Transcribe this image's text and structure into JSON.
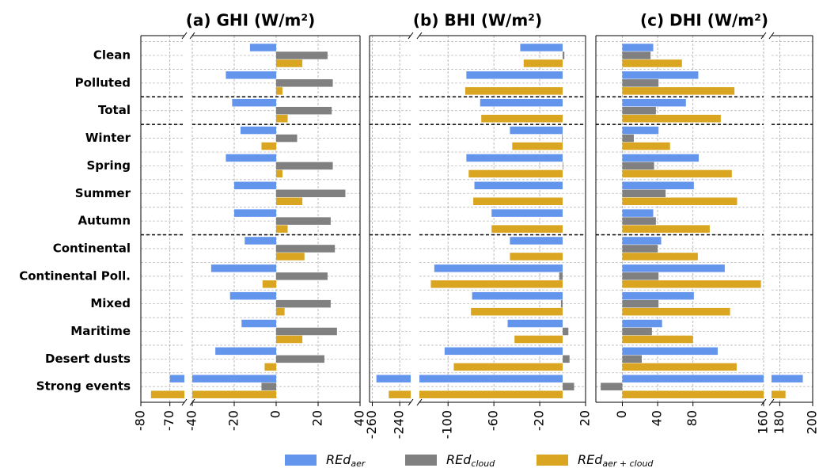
{
  "chart_data": {
    "type": "bar",
    "orientation": "horizontal",
    "grid": true,
    "categories": [
      "Clean",
      "Polluted",
      "Total",
      "Winter",
      "Spring",
      "Summer",
      "Autumn",
      "Continental",
      "Continental Poll.",
      "Mixed",
      "Maritime",
      "Desert dusts",
      "Strong events"
    ],
    "legend": [
      {
        "name": "REd",
        "sub": "aer",
        "color": "#6495ed"
      },
      {
        "name": "REd",
        "sub": "cloud",
        "color": "#808080"
      },
      {
        "name": "REd",
        "sub": "aer + cloud",
        "color": "#daa520"
      }
    ],
    "panels": [
      {
        "title": "(a) GHI (W/m²)",
        "segments": [
          {
            "xlim": [
              -80,
              -65
            ],
            "xticks": [
              -80,
              -70
            ]
          },
          {
            "xlim": [
              -40,
              40
            ],
            "xticks": [
              -40,
              -20,
              0,
              20,
              40
            ]
          }
        ],
        "series": [
          {
            "values": [
              -12.5,
              -24,
              -21,
              -17,
              -24,
              -20,
              -20,
              -15,
              -31,
              -22,
              -16.5,
              -29,
              -70
            ]
          },
          {
            "values": [
              24.5,
              27,
              26.5,
              10,
              27,
              33,
              26,
              28,
              24.5,
              26,
              29,
              23,
              -7
            ]
          },
          {
            "values": [
              12.5,
              3,
              5.5,
              -7,
              3,
              12.5,
              5.5,
              13.5,
              -6.5,
              4,
              12.5,
              -5.5,
              -76.5
            ]
          }
        ]
      },
      {
        "title": "(b) BHI (W/m²)",
        "segments": [
          {
            "xlim": [
              -262,
              -232
            ],
            "xticks": [
              -260,
              -240
            ]
          },
          {
            "xlim": [
              -125,
              20
            ],
            "xticks": [
              -100,
              -60,
              -20,
              20
            ]
          }
        ],
        "series": [
          {
            "values": [
              -37,
              -84,
              -72,
              -46,
              -84,
              -77,
              -62,
              -46,
              -112,
              -79,
              -48,
              -103,
              -257
            ]
          },
          {
            "values": [
              1.5,
              0,
              0,
              -0.5,
              0.5,
              0,
              0,
              0,
              -3,
              -1.5,
              5,
              6,
              10
            ]
          },
          {
            "values": [
              -34,
              -85,
              -71,
              -44,
              -82,
              -78,
              -62,
              -46,
              -115,
              -80,
              -42,
              -95,
              -248
            ]
          }
        ]
      },
      {
        "title": "(c) DHI (W/m²)",
        "segments": [
          {
            "xlim": [
              -30,
              160
            ],
            "xticks": [
              0,
              40,
              80,
              160
            ]
          },
          {
            "xlim": [
              175,
              200
            ],
            "xticks": [
              180,
              200
            ]
          }
        ],
        "series": [
          {
            "values": [
              35,
              86,
              72,
              41,
              86.5,
              81,
              35,
              44,
              116,
              81,
              45,
              108,
              194
            ]
          },
          {
            "values": [
              32,
              41,
              38,
              13,
              36,
              49,
              38,
              40,
              41,
              41,
              33.5,
              22,
              -24.5
            ]
          },
          {
            "values": [
              67.5,
              127,
              111.5,
              54,
              124,
              130,
              99,
              85.5,
              157,
              122,
              80,
              129.5,
              183.5
            ]
          }
        ]
      }
    ]
  }
}
